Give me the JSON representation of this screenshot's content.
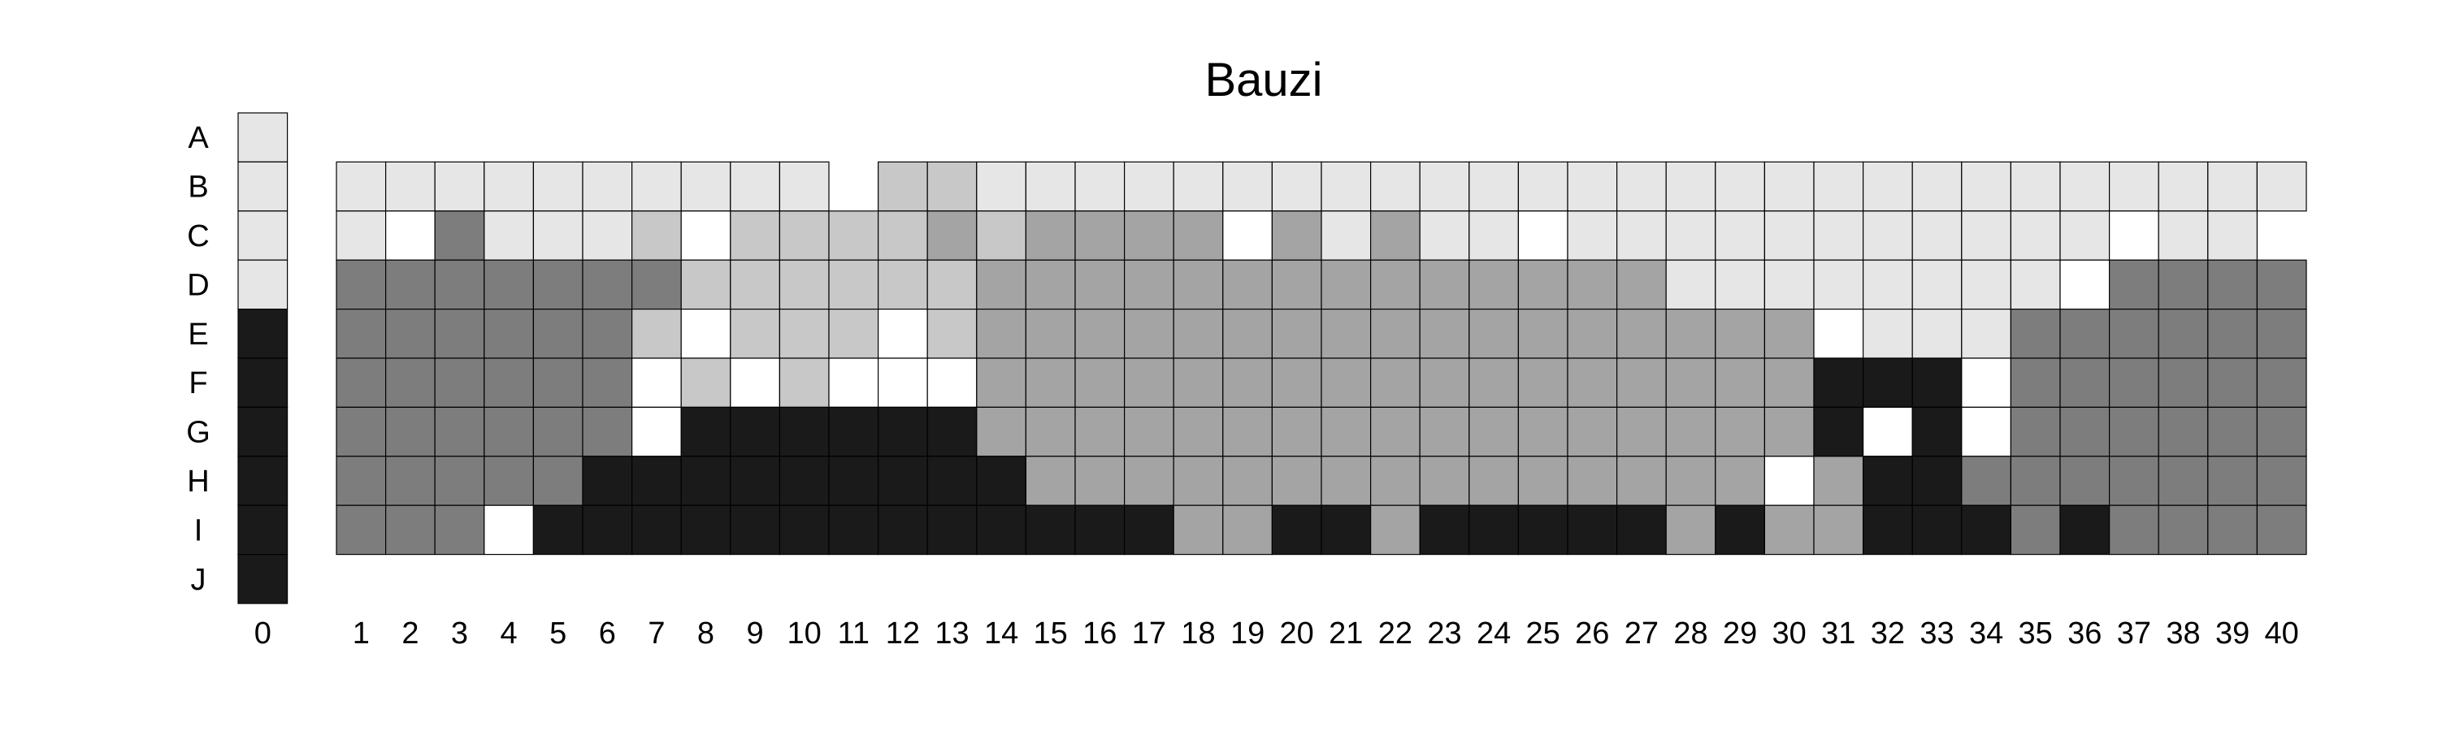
{
  "chart_data": {
    "type": "heatmap",
    "title": "Bauzi",
    "rows": [
      "A",
      "B",
      "C",
      "D",
      "E",
      "F",
      "G",
      "H",
      "I",
      "J"
    ],
    "columns": [
      "0",
      "1",
      "2",
      "3",
      "4",
      "5",
      "6",
      "7",
      "8",
      "9",
      "10",
      "11",
      "12",
      "13",
      "14",
      "15",
      "16",
      "17",
      "18",
      "19",
      "20",
      "21",
      "22",
      "23",
      "24",
      "25",
      "26",
      "27",
      "28",
      "29",
      "30",
      "31",
      "32",
      "33",
      "34",
      "35",
      "36",
      "37",
      "38",
      "39",
      "40"
    ],
    "reference_column": {
      "label": "0",
      "values": [
        1,
        1,
        1,
        1,
        6,
        6,
        6,
        6,
        6,
        6
      ]
    },
    "level_colors": {
      "0": "#ffffff",
      "1": "#e6e6e6",
      "2": "#c8c8c8",
      "3": "#a4a4a4",
      "4": "#a4a4a4",
      "5": "#7d7d7d",
      "6": "#1a1a1a"
    },
    "grid_rows": [
      "B",
      "C",
      "D",
      "E",
      "F",
      "G",
      "H",
      "I"
    ],
    "values": [
      [
        1,
        1,
        1,
        1,
        1,
        1,
        1,
        1,
        1,
        1,
        null,
        2,
        2,
        1,
        1,
        1,
        1,
        1,
        1,
        1,
        1,
        1,
        1,
        1,
        1,
        1,
        1,
        1,
        1,
        1,
        1,
        1,
        1,
        1,
        1,
        1,
        1,
        1,
        1,
        1
      ],
      [
        1,
        0,
        5,
        1,
        1,
        1,
        2,
        0,
        2,
        2,
        2,
        2,
        3,
        2,
        3,
        3,
        3,
        3,
        0,
        3,
        1,
        3,
        1,
        1,
        0,
        1,
        1,
        1,
        1,
        1,
        1,
        1,
        1,
        1,
        1,
        1,
        0,
        1,
        1,
        null
      ],
      [
        5,
        5,
        5,
        5,
        5,
        5,
        5,
        2,
        2,
        2,
        2,
        2,
        2,
        3,
        3,
        3,
        3,
        3,
        3,
        3,
        3,
        3,
        3,
        3,
        3,
        3,
        3,
        1,
        1,
        1,
        1,
        1,
        1,
        1,
        1,
        0,
        5,
        5,
        5,
        5
      ],
      [
        5,
        5,
        5,
        5,
        5,
        5,
        2,
        0,
        2,
        2,
        2,
        0,
        2,
        3,
        3,
        3,
        3,
        3,
        3,
        3,
        3,
        3,
        3,
        3,
        3,
        3,
        3,
        3,
        3,
        3,
        0,
        1,
        1,
        1,
        5,
        5,
        5,
        5,
        5,
        5
      ],
      [
        5,
        5,
        5,
        5,
        5,
        5,
        0,
        2,
        0,
        2,
        0,
        0,
        0,
        3,
        3,
        3,
        3,
        3,
        3,
        3,
        3,
        3,
        3,
        3,
        3,
        3,
        3,
        3,
        3,
        3,
        6,
        6,
        6,
        0,
        5,
        5,
        5,
        5,
        5,
        5
      ],
      [
        5,
        5,
        5,
        5,
        5,
        5,
        0,
        6,
        6,
        6,
        6,
        6,
        6,
        3,
        3,
        3,
        3,
        3,
        3,
        3,
        3,
        3,
        3,
        3,
        3,
        3,
        3,
        3,
        3,
        3,
        6,
        0,
        6,
        0,
        5,
        5,
        5,
        5,
        5,
        5
      ],
      [
        5,
        5,
        5,
        5,
        5,
        6,
        6,
        6,
        6,
        6,
        6,
        6,
        6,
        6,
        3,
        3,
        3,
        3,
        3,
        3,
        3,
        3,
        3,
        3,
        3,
        3,
        3,
        3,
        3,
        0,
        3,
        6,
        6,
        5,
        5,
        5,
        5,
        5,
        5,
        5
      ],
      [
        5,
        5,
        5,
        0,
        6,
        6,
        6,
        6,
        6,
        6,
        6,
        6,
        6,
        6,
        6,
        6,
        6,
        3,
        3,
        6,
        6,
        3,
        6,
        6,
        6,
        6,
        6,
        3,
        6,
        3,
        3,
        6,
        6,
        6,
        5,
        6,
        5,
        5,
        5,
        5
      ]
    ],
    "xlabel": "",
    "ylabel": "",
    "legend": "none",
    "grid": true
  }
}
